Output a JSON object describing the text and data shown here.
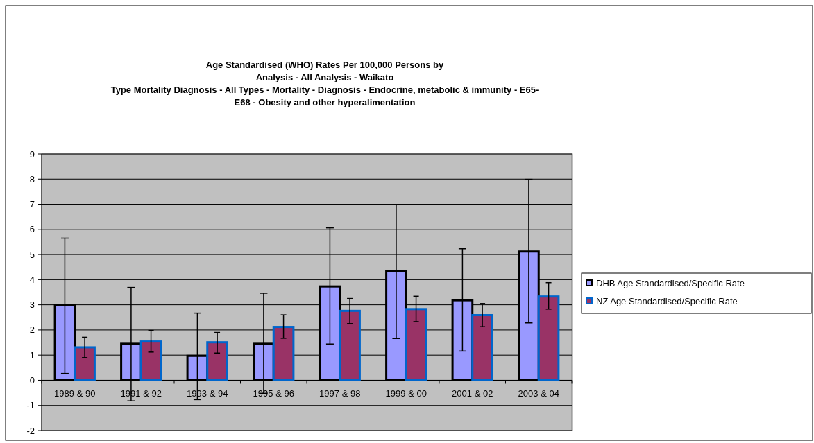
{
  "chart_data": {
    "type": "bar",
    "title": "Age Standardised (WHO) Rates Per 100,000 Persons by\nAnalysis - All Analysis - Waikato\nType Mortality Diagnosis - All Types - Mortality - Diagnosis - Endocrine, metabolic & immunity - E65-\nE68 - Obesity and other hyperalimentation",
    "categories": [
      "1989 & 90",
      "1991 & 92",
      "1993 & 94",
      "1995 & 96",
      "1997 & 98",
      "1999 & 00",
      "2001 & 02",
      "2003 & 04"
    ],
    "series": [
      {
        "name": "DHB Age Standardised/Specific Rate",
        "color": "#9999ff",
        "values": [
          2.98,
          1.45,
          0.97,
          1.45,
          3.73,
          4.35,
          3.18,
          5.12
        ],
        "errors": [
          [
            0.27,
            5.65
          ],
          [
            -0.82,
            3.69
          ],
          [
            -0.77,
            2.67
          ],
          [
            -0.52,
            3.46
          ],
          [
            1.44,
            6.06
          ],
          [
            1.66,
            6.98
          ],
          [
            1.16,
            5.23
          ],
          [
            2.28,
            7.99
          ]
        ]
      },
      {
        "name": "NZ Age Standardised/Specific Rate",
        "color": "#993366",
        "values": [
          1.31,
          1.54,
          1.51,
          2.12,
          2.76,
          2.83,
          2.59,
          3.33
        ],
        "errors": [
          [
            0.9,
            1.71
          ],
          [
            1.12,
            1.98
          ],
          [
            1.08,
            1.9
          ],
          [
            1.67,
            2.6
          ],
          [
            2.25,
            3.25
          ],
          [
            2.33,
            3.34
          ],
          [
            2.13,
            3.05
          ],
          [
            2.83,
            3.88
          ]
        ]
      }
    ],
    "ylim": [
      -2,
      9
    ],
    "yticks": [
      -2,
      -1,
      0,
      1,
      2,
      3,
      4,
      5,
      6,
      7,
      8,
      9
    ],
    "grid": "y",
    "legend": "right"
  }
}
